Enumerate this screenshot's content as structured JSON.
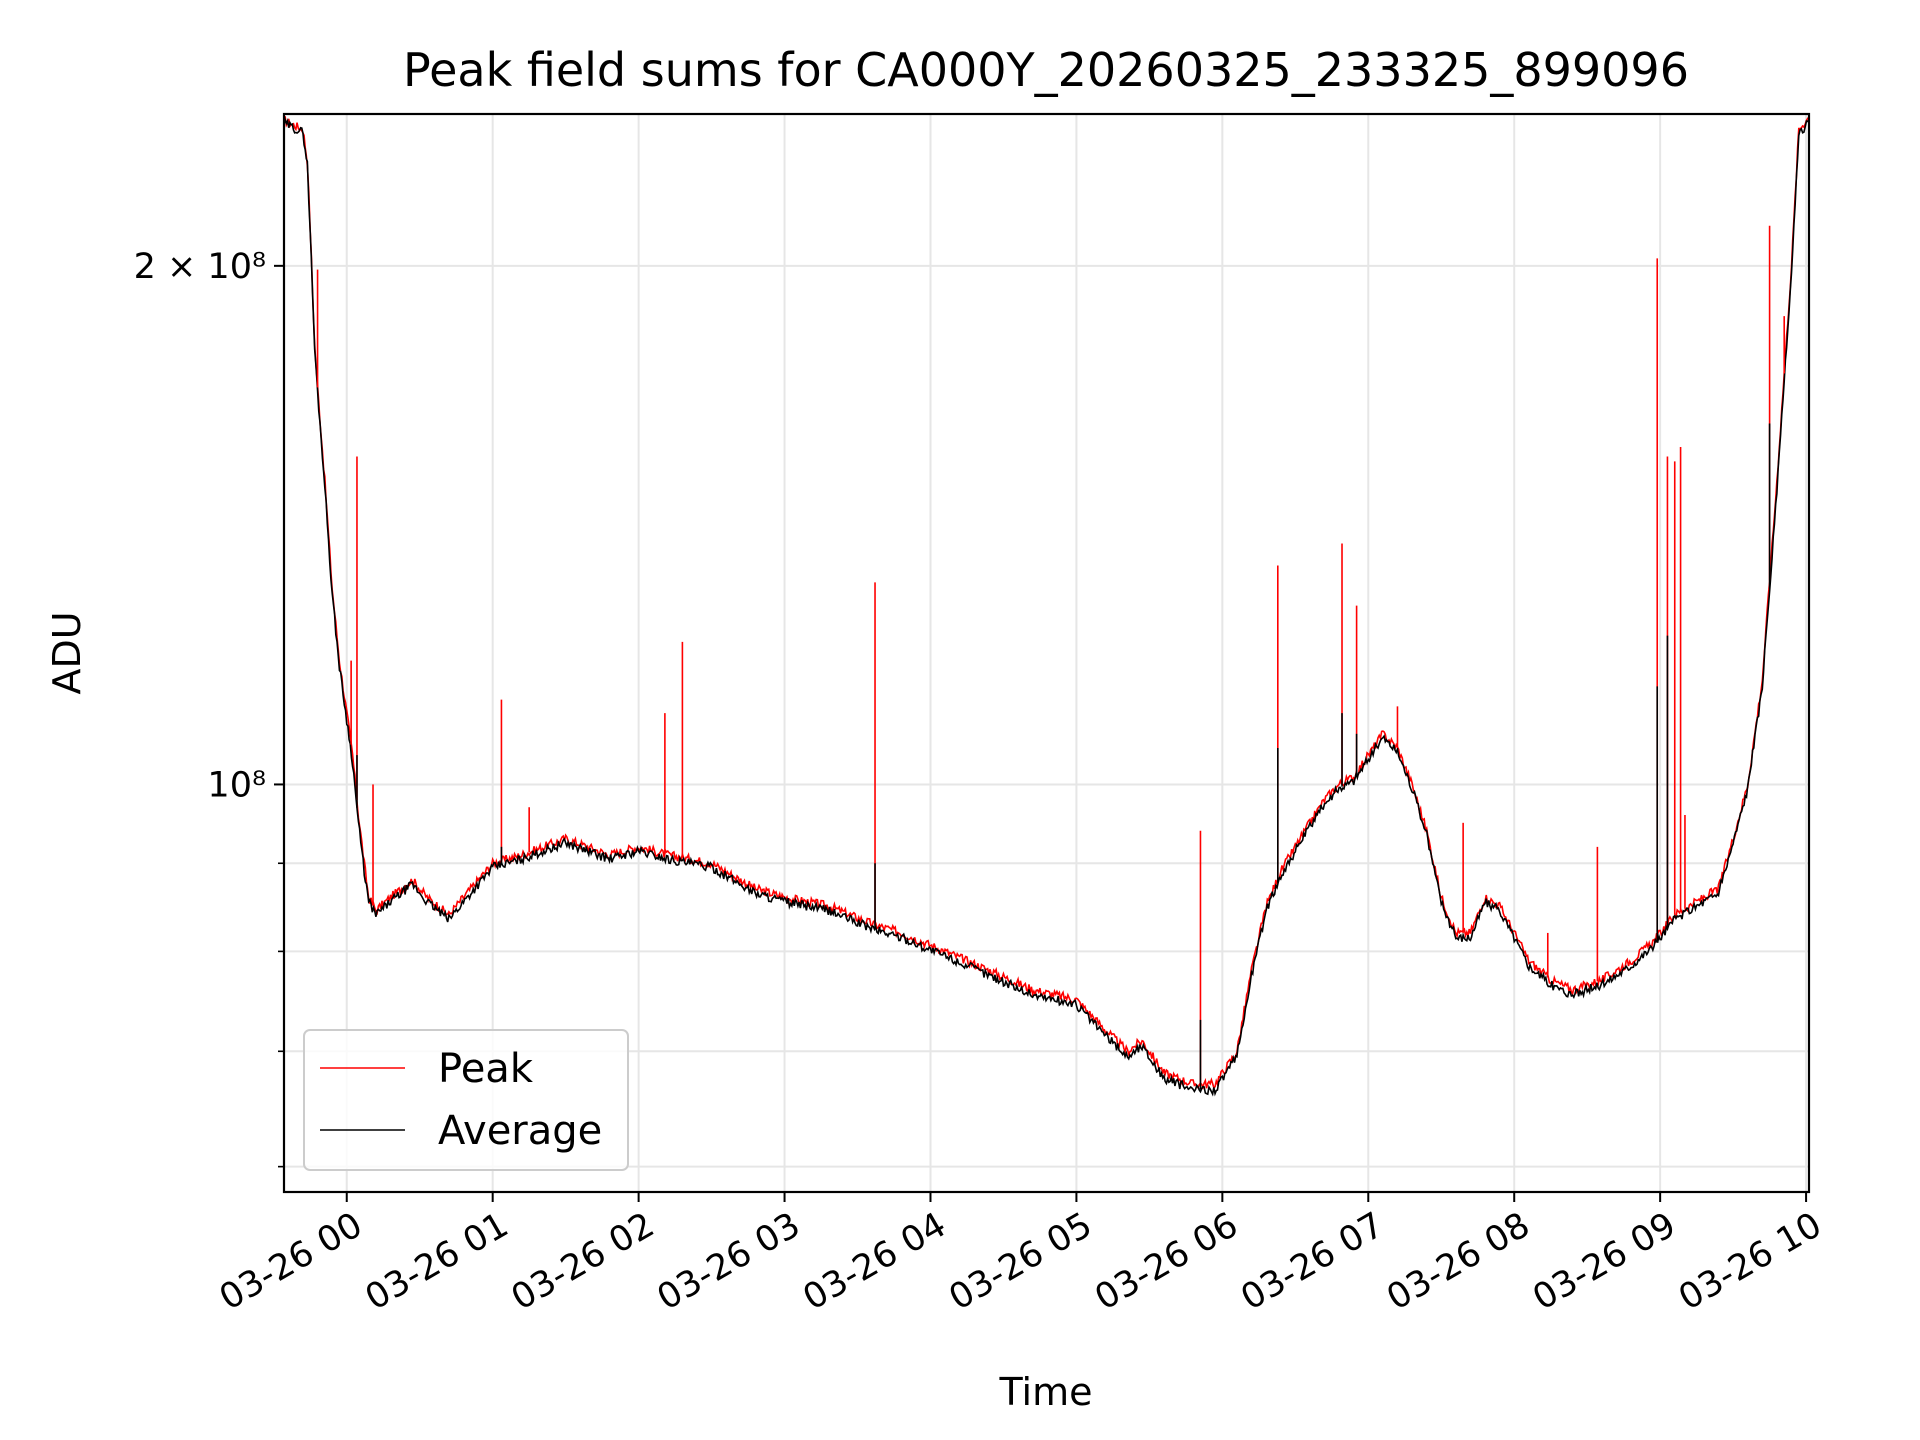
{
  "chart_data": {
    "type": "line",
    "title": "Peak field sums for CA000Y_20260325_233325_899096",
    "xlabel": "Time",
    "ylabel": "ADU",
    "x_unit": "hours after 03-26 00:00",
    "xlim": [
      -0.43,
      10.02
    ],
    "ylim": [
      58000000,
      245000000
    ],
    "yscale": "log",
    "grid": true,
    "legend_position": "lower left",
    "x_tick_labels": [
      "03-26 00",
      "03-26 01",
      "03-26 02",
      "03-26 03",
      "03-26 04",
      "03-26 05",
      "03-26 06",
      "03-26 07",
      "03-26 08",
      "03-26 09",
      "03-26 10"
    ],
    "x_tick_values": [
      0,
      1,
      2,
      3,
      4,
      5,
      6,
      7,
      8,
      9,
      10
    ],
    "y_tick_labels": [
      {
        "value": 200000000,
        "label": "2 × 10⁸",
        "major": true
      },
      {
        "value": 100000000,
        "label": "10⁸",
        "major": true
      }
    ],
    "y_minor_tick_values": [
      90000000,
      80000000,
      70000000,
      60000000
    ],
    "series": [
      {
        "name": "Peak",
        "color": "#ff0000",
        "points": [
          [
            -0.43,
            243000000
          ],
          [
            -0.3,
            240000000
          ],
          [
            -0.27,
            230000000
          ],
          [
            -0.25,
            210000000
          ],
          [
            -0.22,
            180000000
          ],
          [
            -0.2,
            170000000
          ],
          [
            -0.15,
            150000000
          ],
          [
            -0.1,
            130000000
          ],
          [
            -0.05,
            118000000
          ],
          [
            0.0,
            110000000
          ],
          [
            0.04,
            104000000
          ],
          [
            0.08,
            96000000
          ],
          [
            0.12,
            90000000
          ],
          [
            0.15,
            86000000
          ],
          [
            0.2,
            84500000
          ],
          [
            0.3,
            86000000
          ],
          [
            0.45,
            88000000
          ],
          [
            0.55,
            86000000
          ],
          [
            0.7,
            84000000
          ],
          [
            0.8,
            86000000
          ],
          [
            1.0,
            90000000
          ],
          [
            1.2,
            91000000
          ],
          [
            1.5,
            93000000
          ],
          [
            1.8,
            91000000
          ],
          [
            2.0,
            92000000
          ],
          [
            2.2,
            91000000
          ],
          [
            2.5,
            90000000
          ],
          [
            2.8,
            87000000
          ],
          [
            3.0,
            86000000
          ],
          [
            3.3,
            85000000
          ],
          [
            3.6,
            83000000
          ],
          [
            3.8,
            82000000
          ],
          [
            4.1,
            80000000
          ],
          [
            4.4,
            78000000
          ],
          [
            4.7,
            76000000
          ],
          [
            5.0,
            75000000
          ],
          [
            5.2,
            72000000
          ],
          [
            5.35,
            70000000
          ],
          [
            5.45,
            71000000
          ],
          [
            5.6,
            68000000
          ],
          [
            5.8,
            67000000
          ],
          [
            5.95,
            67000000
          ],
          [
            6.1,
            70000000
          ],
          [
            6.2,
            78000000
          ],
          [
            6.3,
            85000000
          ],
          [
            6.4,
            89000000
          ],
          [
            6.5,
            92000000
          ],
          [
            6.6,
            95000000
          ],
          [
            6.7,
            98000000
          ],
          [
            6.8,
            100000000
          ],
          [
            6.9,
            101000000
          ],
          [
            7.0,
            104000000
          ],
          [
            7.1,
            107000000
          ],
          [
            7.2,
            105000000
          ],
          [
            7.3,
            100000000
          ],
          [
            7.4,
            94000000
          ],
          [
            7.5,
            86000000
          ],
          [
            7.6,
            82000000
          ],
          [
            7.7,
            82000000
          ],
          [
            7.8,
            86000000
          ],
          [
            7.9,
            85000000
          ],
          [
            8.0,
            82000000
          ],
          [
            8.1,
            79000000
          ],
          [
            8.25,
            77000000
          ],
          [
            8.4,
            76000000
          ],
          [
            8.6,
            77000000
          ],
          [
            8.8,
            79000000
          ],
          [
            8.95,
            81000000
          ],
          [
            9.1,
            84000000
          ],
          [
            9.3,
            86000000
          ],
          [
            9.4,
            87000000
          ],
          [
            9.5,
            93000000
          ],
          [
            9.6,
            100000000
          ],
          [
            9.7,
            115000000
          ],
          [
            9.8,
            150000000
          ],
          [
            9.9,
            200000000
          ],
          [
            9.95,
            240000000
          ],
          [
            10.02,
            244000000
          ]
        ]
      },
      {
        "name": "Average",
        "color": "#000000",
        "points": [
          [
            -0.43,
            242000000
          ],
          [
            -0.3,
            239000000
          ],
          [
            -0.27,
            229000000
          ],
          [
            -0.25,
            209000000
          ],
          [
            -0.22,
            179000000
          ],
          [
            -0.2,
            169000000
          ],
          [
            -0.15,
            149000000
          ],
          [
            -0.1,
            129000000
          ],
          [
            -0.05,
            117000000
          ],
          [
            0.0,
            109000000
          ],
          [
            0.04,
            103000000
          ],
          [
            0.08,
            95000000
          ],
          [
            0.12,
            89000000
          ],
          [
            0.15,
            85500000
          ],
          [
            0.2,
            84000000
          ],
          [
            0.3,
            85500000
          ],
          [
            0.45,
            87500000
          ],
          [
            0.55,
            85500000
          ],
          [
            0.7,
            83500000
          ],
          [
            0.8,
            85500000
          ],
          [
            1.0,
            89500000
          ],
          [
            1.2,
            90500000
          ],
          [
            1.5,
            92500000
          ],
          [
            1.8,
            90500000
          ],
          [
            2.0,
            91500000
          ],
          [
            2.2,
            90500000
          ],
          [
            2.5,
            89500000
          ],
          [
            2.8,
            86500000
          ],
          [
            3.0,
            85500000
          ],
          [
            3.3,
            84500000
          ],
          [
            3.6,
            82500000
          ],
          [
            3.8,
            81500000
          ],
          [
            4.1,
            79500000
          ],
          [
            4.4,
            77500000
          ],
          [
            4.7,
            75500000
          ],
          [
            5.0,
            74500000
          ],
          [
            5.2,
            71500000
          ],
          [
            5.35,
            69500000
          ],
          [
            5.45,
            70500000
          ],
          [
            5.6,
            67500000
          ],
          [
            5.8,
            66500000
          ],
          [
            5.95,
            66500000
          ],
          [
            6.1,
            69500000
          ],
          [
            6.2,
            77500000
          ],
          [
            6.3,
            84500000
          ],
          [
            6.4,
            88500000
          ],
          [
            6.5,
            91500000
          ],
          [
            6.6,
            94500000
          ],
          [
            6.7,
            97500000
          ],
          [
            6.8,
            99500000
          ],
          [
            6.9,
            100500000
          ],
          [
            7.0,
            103500000
          ],
          [
            7.1,
            106500000
          ],
          [
            7.2,
            104500000
          ],
          [
            7.3,
            99500000
          ],
          [
            7.4,
            93500000
          ],
          [
            7.5,
            85500000
          ],
          [
            7.6,
            81500000
          ],
          [
            7.7,
            81500000
          ],
          [
            7.8,
            85500000
          ],
          [
            7.9,
            84500000
          ],
          [
            8.0,
            81500000
          ],
          [
            8.1,
            78500000
          ],
          [
            8.25,
            76500000
          ],
          [
            8.4,
            75500000
          ],
          [
            8.6,
            76500000
          ],
          [
            8.8,
            78500000
          ],
          [
            8.95,
            80500000
          ],
          [
            9.1,
            83500000
          ],
          [
            9.3,
            85500000
          ],
          [
            9.4,
            86500000
          ],
          [
            9.5,
            92500000
          ],
          [
            9.6,
            99500000
          ],
          [
            9.7,
            114000000
          ],
          [
            9.8,
            148000000
          ],
          [
            9.9,
            198000000
          ],
          [
            9.95,
            238000000
          ],
          [
            10.02,
            243000000
          ]
        ]
      }
    ],
    "spikes": [
      {
        "series": "Peak",
        "x": -0.2,
        "value": 199000000
      },
      {
        "series": "Peak",
        "x": 0.03,
        "value": 118000000
      },
      {
        "series": "Peak",
        "x": 0.07,
        "value": 155000000
      },
      {
        "series": "Peak",
        "x": 0.18,
        "value": 100000000
      },
      {
        "series": "Peak",
        "x": 1.06,
        "value": 112000000
      },
      {
        "series": "Peak",
        "x": 1.25,
        "value": 97000000
      },
      {
        "series": "Peak",
        "x": 2.18,
        "value": 110000000
      },
      {
        "series": "Peak",
        "x": 2.3,
        "value": 121000000
      },
      {
        "series": "Peak",
        "x": 3.62,
        "value": 131000000
      },
      {
        "series": "Peak",
        "x": 5.85,
        "value": 94000000
      },
      {
        "series": "Peak",
        "x": 6.38,
        "value": 134000000
      },
      {
        "series": "Peak",
        "x": 6.82,
        "value": 138000000
      },
      {
        "series": "Peak",
        "x": 6.92,
        "value": 127000000
      },
      {
        "series": "Peak",
        "x": 7.2,
        "value": 111000000
      },
      {
        "series": "Peak",
        "x": 7.65,
        "value": 95000000
      },
      {
        "series": "Peak",
        "x": 8.23,
        "value": 82000000
      },
      {
        "series": "Peak",
        "x": 8.57,
        "value": 92000000
      },
      {
        "series": "Peak",
        "x": 8.98,
        "value": 202000000
      },
      {
        "series": "Peak",
        "x": 9.05,
        "value": 155000000
      },
      {
        "series": "Peak",
        "x": 9.1,
        "value": 154000000
      },
      {
        "series": "Peak",
        "x": 9.14,
        "value": 157000000
      },
      {
        "series": "Peak",
        "x": 9.17,
        "value": 96000000
      },
      {
        "series": "Peak",
        "x": 9.75,
        "value": 211000000
      },
      {
        "series": "Peak",
        "x": 9.85,
        "value": 187000000
      },
      {
        "series": "Average",
        "x": 0.07,
        "value": 104000000
      },
      {
        "series": "Average",
        "x": 1.06,
        "value": 92000000
      },
      {
        "series": "Average",
        "x": 3.62,
        "value": 90000000
      },
      {
        "series": "Average",
        "x": 5.85,
        "value": 73000000
      },
      {
        "series": "Average",
        "x": 6.38,
        "value": 105000000
      },
      {
        "series": "Average",
        "x": 6.82,
        "value": 110000000
      },
      {
        "series": "Average",
        "x": 6.92,
        "value": 107000000
      },
      {
        "series": "Average",
        "x": 8.98,
        "value": 114000000
      },
      {
        "series": "Average",
        "x": 9.05,
        "value": 122000000
      },
      {
        "series": "Average",
        "x": 9.75,
        "value": 162000000
      }
    ]
  }
}
